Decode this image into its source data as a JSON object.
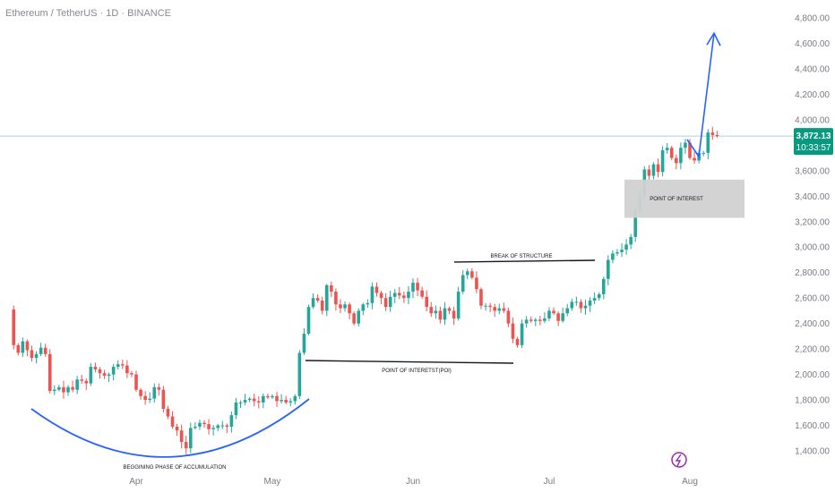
{
  "header": {
    "symbol_title": "Ethereum / TetherUS · 1D · BINANCE"
  },
  "colors": {
    "up": "#26a69a",
    "down": "#ef5350",
    "arc": "#2962ff",
    "price_line": "#a8d5d8",
    "price_tag_bg": "#089981",
    "poi_box": "#d1d1d1",
    "event_icon": "#9c27b0"
  },
  "icons": {
    "event": "lightning-circle-icon"
  },
  "price_tag": {
    "price": "3,872.13",
    "countdown": "10:33:57"
  },
  "chart_data": {
    "type": "candlestick",
    "title": "Ethereum / TetherUS · 1D · BINANCE",
    "y_axis": {
      "min": 1300,
      "max": 4900,
      "ticks": [
        1400,
        1600,
        1800,
        2000,
        2200,
        2400,
        2600,
        2800,
        3000,
        3200,
        3400,
        3600,
        3800,
        4000,
        4200,
        4400,
        4600,
        4800
      ],
      "tick_labels": [
        "1,400.00",
        "1,600.00",
        "1,800.00",
        "2,000.00",
        "2,200.00",
        "2,400.00",
        "2,600.00",
        "2,800.00",
        "3,000.00",
        "3,200.00",
        "3,400.00",
        "3,600.00",
        "3,800.00",
        "4,000.00",
        "4,200.00",
        "4,400.00",
        "4,600.00",
        "4,800.00"
      ]
    },
    "x_axis": {
      "start": "2025-03-05",
      "end": "2025-08-10",
      "ticks": [
        {
          "label": "Apr",
          "date": "2025-04-01"
        },
        {
          "label": "May",
          "date": "2025-05-01"
        },
        {
          "label": "Jun",
          "date": "2025-06-01"
        },
        {
          "label": "Jul",
          "date": "2025-07-01"
        },
        {
          "label": "Aug",
          "date": "2025-08-01"
        }
      ]
    },
    "first_date": "2025-03-05",
    "close": [
      2230,
      2170,
      2260,
      2190,
      2130,
      2160,
      2210,
      2160,
      1870,
      1880,
      1900,
      1860,
      1900,
      1880,
      1960,
      1950,
      1930,
      2060,
      2040,
      2010,
      1990,
      2000,
      2060,
      2080,
      2070,
      2010,
      2000,
      1880,
      1830,
      1800,
      1810,
      1900,
      1880,
      1730,
      1670,
      1590,
      1560,
      1470,
      1420,
      1580,
      1590,
      1620,
      1610,
      1570,
      1580,
      1600,
      1600,
      1590,
      1680,
      1780,
      1780,
      1800,
      1810,
      1790,
      1780,
      1830,
      1820,
      1830,
      1790,
      1800,
      1780,
      1790,
      1830,
      2170,
      2320,
      2530,
      2600,
      2580,
      2500,
      2700,
      2650,
      2550,
      2520,
      2550,
      2480,
      2400,
      2500,
      2550,
      2560,
      2690,
      2640,
      2600,
      2530,
      2610,
      2640,
      2620,
      2600,
      2650,
      2720,
      2660,
      2610,
      2530,
      2480,
      2500,
      2430,
      2520,
      2500,
      2440,
      2650,
      2780,
      2810,
      2760,
      2670,
      2540,
      2540,
      2530,
      2500,
      2520,
      2500,
      2400,
      2280,
      2230,
      2400,
      2430,
      2420,
      2430,
      2420,
      2440,
      2500,
      2480,
      2420,
      2480,
      2520,
      2570,
      2570,
      2520,
      2540,
      2580,
      2600,
      2630,
      2750,
      2900,
      2950,
      2960,
      2980,
      3020,
      3080,
      3290,
      3400,
      3610,
      3560,
      3650,
      3590,
      3760,
      3780,
      3700,
      3660,
      3780,
      3820,
      3700,
      3680,
      3740,
      3740,
      3900,
      3880,
      3872.13
    ],
    "series": [],
    "annotations": {
      "accumulation_label": "BEGGINING PHASE OF ACCUMULATION",
      "poi_label": "POINT OF INTERETST(POI)",
      "bos_label": "BREAK OF STRUCTURE",
      "poi_zone_label": "POINT OF INTEREST",
      "poi_zone_range": [
        3230,
        3530
      ],
      "poi_line_price": 2130,
      "bos_line_price": 2870,
      "projection_target": 4680
    },
    "grid": false,
    "legend": "none"
  }
}
